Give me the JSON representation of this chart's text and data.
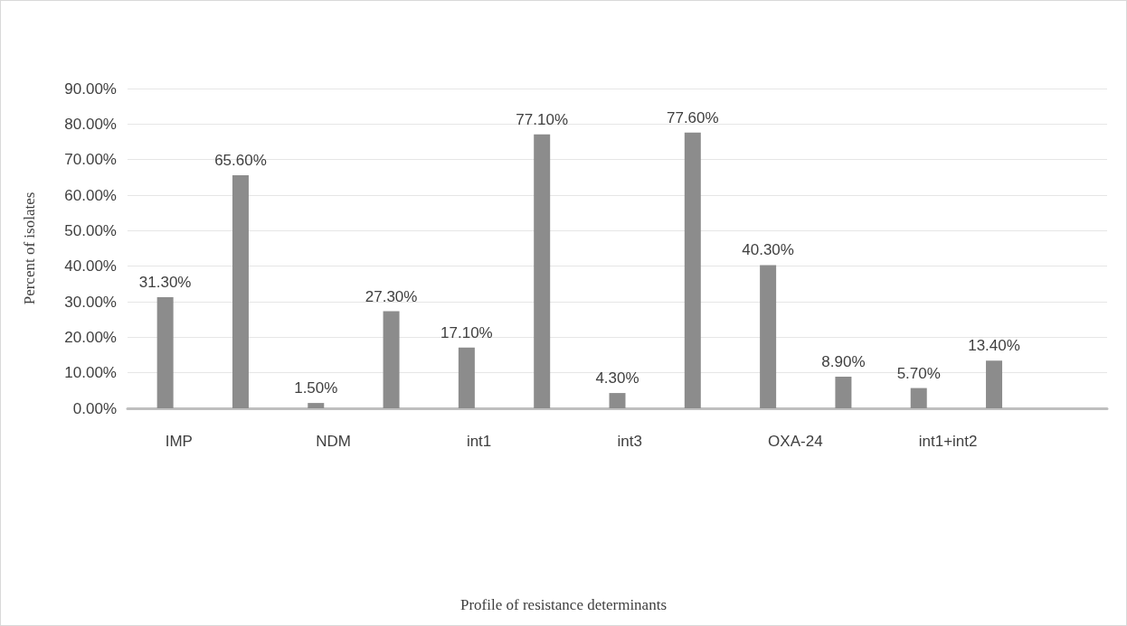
{
  "chart_data": {
    "type": "bar",
    "annotations": [
      "Profile of resistance determinants"
    ],
    "ylabel": "Percent of isolates",
    "categories": [
      "IMP",
      null,
      "NDM",
      null,
      "int1",
      null,
      "int3",
      null,
      "OXA-24",
      null,
      "int1+int2",
      null,
      null
    ],
    "values": [
      31.3,
      65.6,
      1.5,
      27.3,
      17.1,
      77.1,
      4.3,
      77.6,
      40.3,
      8.9,
      5.7,
      13.4,
      null
    ],
    "value_labels": [
      "31.30%",
      "65.60%",
      "1.50%",
      "27.30%",
      "17.10%",
      "77.10%",
      "4.30%",
      "77.60%",
      "40.30%",
      "8.90%",
      "5.70%",
      "13.40%",
      null
    ],
    "color": "#8c8c8c",
    "ylim": [
      0,
      90
    ],
    "yticks": [
      {
        "value": 0,
        "label": "0.00%"
      },
      {
        "value": 10,
        "label": "10.00%"
      },
      {
        "value": 20,
        "label": "20.00%"
      },
      {
        "value": 30,
        "label": "30.00%"
      },
      {
        "value": 40,
        "label": "40.00%"
      },
      {
        "value": 50,
        "label": "50.00%"
      },
      {
        "value": 60,
        "label": "60.00%"
      },
      {
        "value": 70,
        "label": "70.00%"
      },
      {
        "value": 80,
        "label": "80.00%"
      },
      {
        "value": 90,
        "label": "90.00%"
      }
    ],
    "grid": "y"
  }
}
